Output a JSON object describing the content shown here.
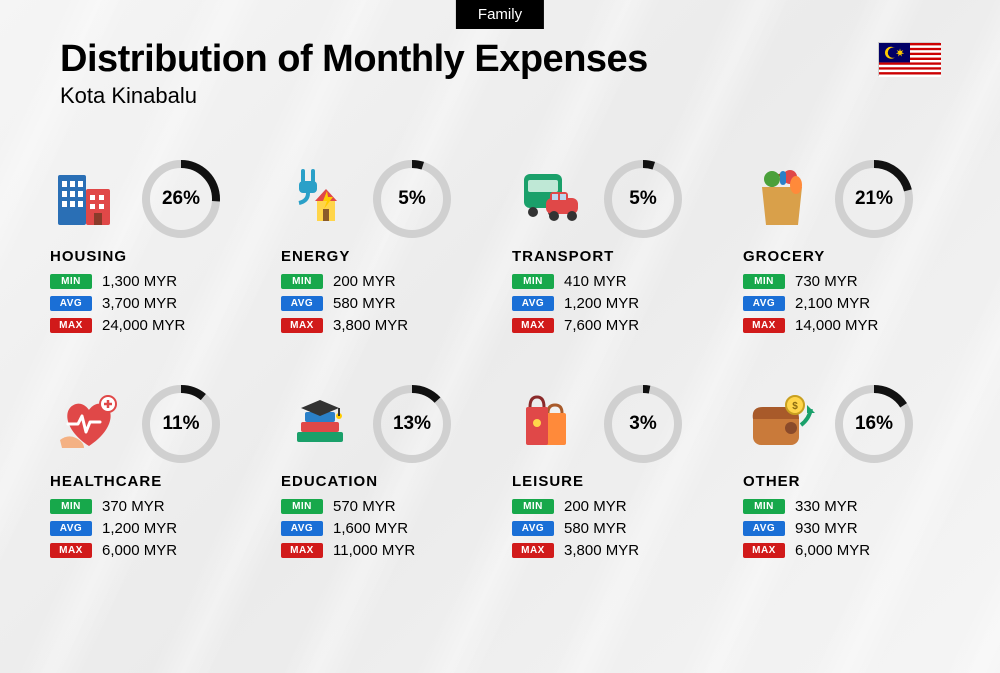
{
  "tag": "Family",
  "title": "Distribution of Monthly Expenses",
  "subtitle": "Kota Kinabalu",
  "currency": "MYR",
  "donut": {
    "size": 78,
    "stroke": 8,
    "track_color": "#d0d0d0",
    "progress_color": "#111111",
    "pct_fontsize": 19
  },
  "badges": {
    "min": {
      "label": "MIN",
      "bg": "#17a84b"
    },
    "avg": {
      "label": "AVG",
      "bg": "#1a6fd6"
    },
    "max": {
      "label": "MAX",
      "bg": "#d11a1a"
    }
  },
  "flag": {
    "stripe_red": "#cc0001",
    "stripe_white": "#ffffff",
    "canton": "#010066",
    "emblem": "#ffcc00"
  },
  "categories": [
    {
      "key": "housing",
      "name": "HOUSING",
      "pct": 26,
      "min": "1,300",
      "avg": "3,700",
      "max": "24,000"
    },
    {
      "key": "energy",
      "name": "ENERGY",
      "pct": 5,
      "min": "200",
      "avg": "580",
      "max": "3,800"
    },
    {
      "key": "transport",
      "name": "TRANSPORT",
      "pct": 5,
      "min": "410",
      "avg": "1,200",
      "max": "7,600"
    },
    {
      "key": "grocery",
      "name": "GROCERY",
      "pct": 21,
      "min": "730",
      "avg": "2,100",
      "max": "14,000"
    },
    {
      "key": "healthcare",
      "name": "HEALTHCARE",
      "pct": 11,
      "min": "370",
      "avg": "1,200",
      "max": "6,000"
    },
    {
      "key": "education",
      "name": "EDUCATION",
      "pct": 13,
      "min": "570",
      "avg": "1,600",
      "max": "11,000"
    },
    {
      "key": "leisure",
      "name": "LEISURE",
      "pct": 3,
      "min": "200",
      "avg": "580",
      "max": "3,800"
    },
    {
      "key": "other",
      "name": "OTHER",
      "pct": 16,
      "min": "330",
      "avg": "930",
      "max": "6,000"
    }
  ]
}
